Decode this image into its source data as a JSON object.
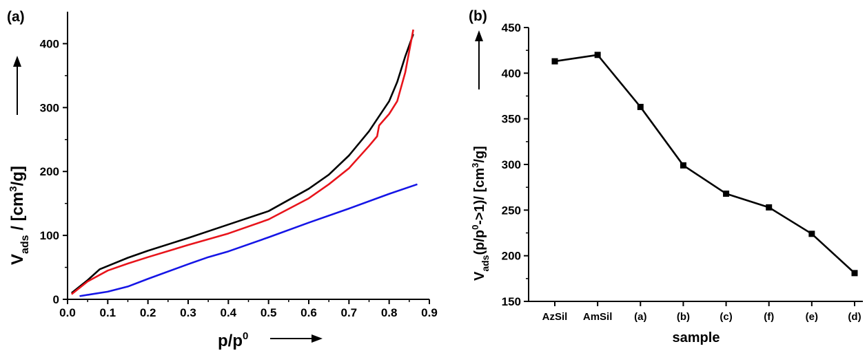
{
  "chart_data": [
    {
      "type": "line",
      "panel_label": "(a)",
      "xlabel": "p/p",
      "xlabel_sup": "0",
      "ylabel_main": "V",
      "ylabel_sub": "ads",
      "ylabel_rest": " / [cm",
      "ylabel_sup": "3",
      "ylabel_end": "/g]",
      "xlim": [
        0.0,
        0.9
      ],
      "ylim": [
        0,
        450
      ],
      "xticks": [
        0.0,
        0.1,
        0.2,
        0.3,
        0.4,
        0.5,
        0.6,
        0.7,
        0.8,
        0.9
      ],
      "xtick_labels": [
        "0.0",
        "0.1",
        "0.2",
        "0.3",
        "0.4",
        "0.5",
        "0.6",
        "0.7",
        "0.8",
        "0.9"
      ],
      "yticks": [
        0,
        100,
        200,
        300,
        400
      ],
      "ytick_labels": [
        "0",
        "100",
        "200",
        "300",
        "400"
      ],
      "series": [
        {
          "color": "#000000",
          "x": [
            0.01,
            0.05,
            0.08,
            0.15,
            0.2,
            0.3,
            0.4,
            0.5,
            0.6,
            0.65,
            0.7,
            0.75,
            0.8,
            0.82,
            0.84,
            0.86
          ],
          "y": [
            10,
            30,
            47,
            65,
            76,
            96,
            117,
            138,
            173,
            195,
            225,
            263,
            310,
            340,
            380,
            415
          ]
        },
        {
          "color": "#e8141b",
          "x": [
            0.01,
            0.05,
            0.1,
            0.15,
            0.2,
            0.3,
            0.4,
            0.5,
            0.6,
            0.65,
            0.7,
            0.75,
            0.77,
            0.775,
            0.8,
            0.82,
            0.84,
            0.86
          ],
          "y": [
            8,
            28,
            45,
            56,
            66,
            85,
            103,
            125,
            158,
            180,
            205,
            240,
            255,
            272,
            290,
            310,
            355,
            422
          ]
        },
        {
          "color": "#1515e6",
          "x": [
            0.03,
            0.06,
            0.1,
            0.15,
            0.2,
            0.3,
            0.35,
            0.4,
            0.5,
            0.6,
            0.7,
            0.8,
            0.87
          ],
          "y": [
            5,
            8,
            12,
            20,
            32,
            55,
            66,
            75,
            97,
            120,
            142,
            165,
            180
          ]
        }
      ]
    },
    {
      "type": "line",
      "panel_label": "(b)",
      "xlabel": "sample",
      "ylabel_main": "V",
      "ylabel_sub": "ads",
      "ylabel_rest": "(p/p",
      "ylabel_sup": "0",
      "ylabel_mid": "->1)/ [cm",
      "ylabel_sup2": "3",
      "ylabel_end": "/g]",
      "categories": [
        "AzSil",
        "AmSil",
        "(a)",
        "(b)",
        "(c)",
        "(f)",
        "(e)",
        "(d)"
      ],
      "ylim": [
        150,
        450
      ],
      "yticks": [
        150,
        200,
        250,
        300,
        350,
        400,
        450
      ],
      "ytick_labels": [
        "150",
        "200",
        "250",
        "300",
        "350",
        "400",
        "450"
      ],
      "series": [
        {
          "color": "#000000",
          "marker": "square",
          "values": [
            413,
            420,
            363,
            299,
            268,
            253,
            224,
            181
          ]
        }
      ]
    }
  ]
}
